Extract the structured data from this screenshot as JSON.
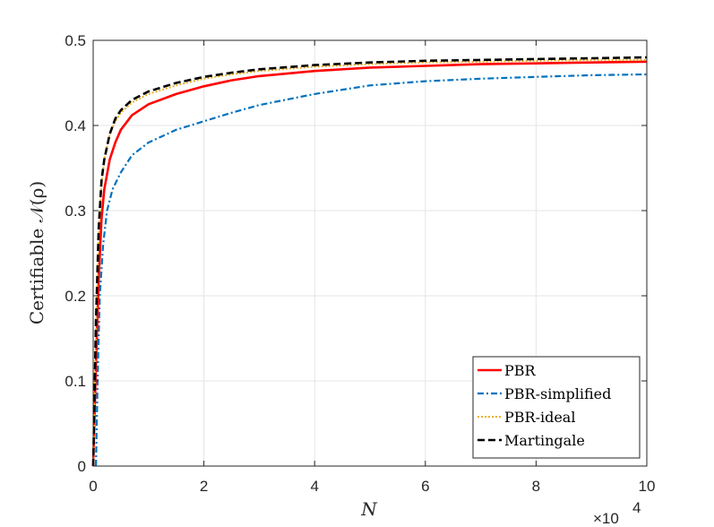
{
  "chart_data": {
    "type": "line",
    "title": "",
    "xlabel": "N",
    "ylabel": "Certifiable 𝒩(ρ)",
    "x_exponent_label": "×10",
    "x_exponent_power": "4",
    "xlim": [
      0,
      10
    ],
    "ylim": [
      0,
      0.5
    ],
    "x_ticks": [
      "0",
      "2",
      "4",
      "6",
      "8",
      "10"
    ],
    "y_ticks": [
      "0",
      "0.1",
      "0.2",
      "0.3",
      "0.4",
      "0.5"
    ],
    "grid": true,
    "legend_position": "bottom-right",
    "series": [
      {
        "name": "PBR",
        "color": "#ff0000",
        "dash": "solid",
        "x": [
          0,
          0.05,
          0.1,
          0.15,
          0.2,
          0.3,
          0.4,
          0.5,
          0.7,
          1,
          1.5,
          2,
          2.5,
          3,
          4,
          5,
          6,
          7,
          8,
          9,
          10
        ],
        "y": [
          0,
          0.12,
          0.22,
          0.29,
          0.325,
          0.36,
          0.38,
          0.395,
          0.412,
          0.425,
          0.437,
          0.446,
          0.453,
          0.458,
          0.464,
          0.468,
          0.47,
          0.472,
          0.473,
          0.474,
          0.475
        ]
      },
      {
        "name": "PBR-simplified",
        "color": "#0072bd",
        "dash": "dashdot",
        "x": [
          0.05,
          0.08,
          0.12,
          0.18,
          0.25,
          0.35,
          0.5,
          0.7,
          1,
          1.5,
          2,
          2.5,
          3,
          4,
          5,
          6,
          7,
          8,
          9,
          10
        ],
        "y": [
          0,
          0.1,
          0.2,
          0.26,
          0.3,
          0.325,
          0.345,
          0.365,
          0.38,
          0.395,
          0.405,
          0.415,
          0.424,
          0.437,
          0.447,
          0.452,
          0.455,
          0.457,
          0.459,
          0.46
        ]
      },
      {
        "name": "PBR-ideal",
        "color": "#edb120",
        "dash": "dotted",
        "x": [
          0,
          0.05,
          0.1,
          0.15,
          0.2,
          0.3,
          0.4,
          0.5,
          0.7,
          1,
          1.5,
          2,
          2.5,
          3,
          4,
          5,
          6,
          7,
          8,
          9,
          10
        ],
        "y": [
          0,
          0.16,
          0.27,
          0.33,
          0.36,
          0.39,
          0.405,
          0.415,
          0.427,
          0.437,
          0.447,
          0.455,
          0.46,
          0.464,
          0.469,
          0.472,
          0.474,
          0.475,
          0.476,
          0.477,
          0.477
        ]
      },
      {
        "name": "Martingale",
        "color": "#000000",
        "dash": "dashed",
        "x": [
          0,
          0.05,
          0.1,
          0.15,
          0.2,
          0.3,
          0.4,
          0.5,
          0.7,
          1,
          1.5,
          2,
          2.5,
          3,
          4,
          5,
          6,
          7,
          8,
          9,
          10
        ],
        "y": [
          0,
          0.17,
          0.28,
          0.335,
          0.36,
          0.39,
          0.408,
          0.418,
          0.43,
          0.44,
          0.45,
          0.457,
          0.462,
          0.466,
          0.471,
          0.474,
          0.476,
          0.477,
          0.478,
          0.479,
          0.48
        ]
      }
    ]
  }
}
